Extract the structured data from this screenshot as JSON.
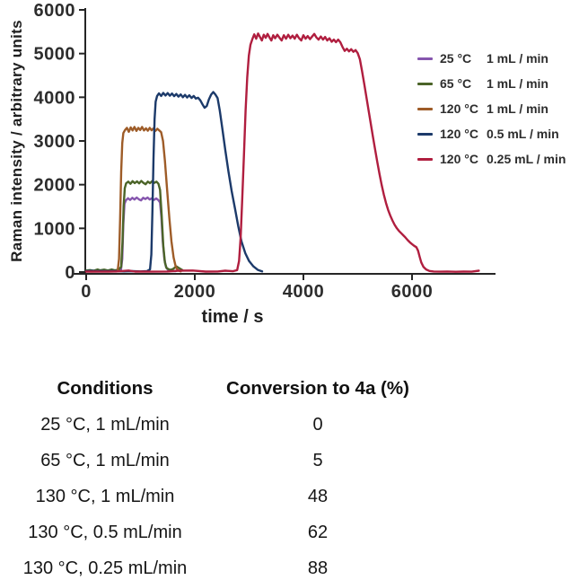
{
  "chart_data": {
    "type": "line",
    "title": "",
    "xlabel": "time / s",
    "ylabel": "Raman intensity / arbitrary units",
    "xlim": [
      0,
      7500
    ],
    "ylim": [
      0,
      6000
    ],
    "x_ticks": [
      0,
      2000,
      4000,
      6000
    ],
    "y_ticks": [
      0,
      1000,
      2000,
      3000,
      4000,
      5000,
      6000
    ],
    "grid": false,
    "legend_position": "right",
    "axis_color": "#262626",
    "series": [
      {
        "name": "25c-1ml",
        "temp": "25 °C",
        "flow": "1 mL / min",
        "color": "#8656ae",
        "points": [
          [
            0,
            25
          ],
          [
            60,
            20
          ],
          [
            130,
            30
          ],
          [
            200,
            22
          ],
          [
            270,
            28
          ],
          [
            340,
            20
          ],
          [
            420,
            26
          ],
          [
            500,
            22
          ],
          [
            580,
            28
          ],
          [
            640,
            40
          ],
          [
            665,
            300
          ],
          [
            685,
            1100
          ],
          [
            705,
            1560
          ],
          [
            730,
            1640
          ],
          [
            770,
            1690
          ],
          [
            810,
            1650
          ],
          [
            850,
            1700
          ],
          [
            890,
            1660
          ],
          [
            930,
            1705
          ],
          [
            970,
            1665
          ],
          [
            1010,
            1640
          ],
          [
            1050,
            1700
          ],
          [
            1090,
            1670
          ],
          [
            1130,
            1705
          ],
          [
            1170,
            1660
          ],
          [
            1210,
            1690
          ],
          [
            1250,
            1650
          ],
          [
            1290,
            1685
          ],
          [
            1330,
            1645
          ],
          [
            1360,
            1590
          ],
          [
            1385,
            1250
          ],
          [
            1410,
            700
          ],
          [
            1440,
            300
          ],
          [
            1470,
            120
          ],
          [
            1510,
            40
          ],
          [
            1580,
            25
          ],
          [
            1650,
            20
          ]
        ]
      },
      {
        "name": "65c-1ml",
        "temp": "65 °C",
        "flow": "1 mL / min",
        "color": "#4b6428",
        "points": [
          [
            0,
            35
          ],
          [
            70,
            45
          ],
          [
            140,
            30
          ],
          [
            210,
            60
          ],
          [
            260,
            40
          ],
          [
            330,
            55
          ],
          [
            400,
            35
          ],
          [
            470,
            60
          ],
          [
            530,
            40
          ],
          [
            600,
            55
          ],
          [
            645,
            120
          ],
          [
            670,
            700
          ],
          [
            690,
            1500
          ],
          [
            710,
            1920
          ],
          [
            735,
            2030
          ],
          [
            775,
            2070
          ],
          [
            815,
            2020
          ],
          [
            855,
            2080
          ],
          [
            895,
            2035
          ],
          [
            935,
            2075
          ],
          [
            975,
            2030
          ],
          [
            1015,
            2085
          ],
          [
            1055,
            2040
          ],
          [
            1095,
            2010
          ],
          [
            1135,
            2070
          ],
          [
            1175,
            2035
          ],
          [
            1215,
            2080
          ],
          [
            1255,
            2040
          ],
          [
            1295,
            2070
          ],
          [
            1330,
            2020
          ],
          [
            1360,
            1880
          ],
          [
            1390,
            1300
          ],
          [
            1420,
            600
          ],
          [
            1450,
            220
          ],
          [
            1480,
            90
          ],
          [
            1540,
            50
          ],
          [
            1600,
            70
          ],
          [
            1660,
            130
          ],
          [
            1710,
            90
          ],
          [
            1770,
            45
          ]
        ]
      },
      {
        "name": "120c-1ml",
        "temp": "120 °C",
        "flow": "1 mL / min",
        "color": "#9e5c28",
        "points": [
          [
            0,
            15
          ],
          [
            100,
            12
          ],
          [
            250,
            15
          ],
          [
            400,
            12
          ],
          [
            520,
            15
          ],
          [
            580,
            30
          ],
          [
            605,
            300
          ],
          [
            625,
            1200
          ],
          [
            645,
            2300
          ],
          [
            665,
            2950
          ],
          [
            685,
            3180
          ],
          [
            715,
            3250
          ],
          [
            750,
            3300
          ],
          [
            785,
            3210
          ],
          [
            820,
            3310
          ],
          [
            855,
            3240
          ],
          [
            890,
            3320
          ],
          [
            925,
            3230
          ],
          [
            960,
            3300
          ],
          [
            995,
            3250
          ],
          [
            1030,
            3320
          ],
          [
            1065,
            3240
          ],
          [
            1100,
            3290
          ],
          [
            1135,
            3235
          ],
          [
            1170,
            3300
          ],
          [
            1205,
            3245
          ],
          [
            1240,
            3290
          ],
          [
            1275,
            3230
          ],
          [
            1310,
            3280
          ],
          [
            1345,
            3240
          ],
          [
            1380,
            3200
          ],
          [
            1415,
            3000
          ],
          [
            1450,
            2550
          ],
          [
            1490,
            1900
          ],
          [
            1530,
            1250
          ],
          [
            1570,
            700
          ],
          [
            1610,
            330
          ],
          [
            1650,
            120
          ],
          [
            1690,
            40
          ],
          [
            1740,
            15
          ]
        ]
      },
      {
        "name": "120c-05ml",
        "temp": "120 °C",
        "flow": "0.5 mL / min",
        "color": "#1c3a6a",
        "points": [
          [
            0,
            20
          ],
          [
            90,
            28
          ],
          [
            180,
            18
          ],
          [
            280,
            25
          ],
          [
            380,
            18
          ],
          [
            480,
            24
          ],
          [
            570,
            18
          ],
          [
            700,
            15
          ],
          [
            850,
            20
          ],
          [
            1000,
            15
          ],
          [
            1120,
            22
          ],
          [
            1175,
            60
          ],
          [
            1200,
            400
          ],
          [
            1220,
            1400
          ],
          [
            1240,
            2600
          ],
          [
            1260,
            3500
          ],
          [
            1280,
            3900
          ],
          [
            1305,
            4030
          ],
          [
            1340,
            4090
          ],
          [
            1380,
            4030
          ],
          [
            1420,
            4100
          ],
          [
            1460,
            4040
          ],
          [
            1500,
            4095
          ],
          [
            1540,
            4035
          ],
          [
            1580,
            4085
          ],
          [
            1620,
            4025
          ],
          [
            1660,
            4075
          ],
          [
            1700,
            4015
          ],
          [
            1740,
            4065
          ],
          [
            1780,
            4000
          ],
          [
            1820,
            4055
          ],
          [
            1860,
            3995
          ],
          [
            1900,
            4045
          ],
          [
            1940,
            3985
          ],
          [
            1980,
            4030
          ],
          [
            2020,
            3970
          ],
          [
            2060,
            3990
          ],
          [
            2100,
            3930
          ],
          [
            2140,
            3840
          ],
          [
            2180,
            3760
          ],
          [
            2220,
            3800
          ],
          [
            2260,
            3950
          ],
          [
            2300,
            4060
          ],
          [
            2340,
            4120
          ],
          [
            2380,
            4060
          ],
          [
            2420,
            3980
          ],
          [
            2460,
            3700
          ],
          [
            2510,
            3250
          ],
          [
            2560,
            2800
          ],
          [
            2620,
            2300
          ],
          [
            2680,
            1850
          ],
          [
            2740,
            1450
          ],
          [
            2800,
            1050
          ],
          [
            2860,
            700
          ],
          [
            2930,
            430
          ],
          [
            3000,
            250
          ],
          [
            3080,
            130
          ],
          [
            3160,
            50
          ],
          [
            3240,
            15
          ]
        ]
      },
      {
        "name": "120c-025ml",
        "temp": "120 °C",
        "flow": "0.25 mL / min",
        "color": "#b01e3f",
        "points": [
          [
            0,
            10
          ],
          [
            300,
            8
          ],
          [
            550,
            12
          ],
          [
            780,
            35
          ],
          [
            900,
            10
          ],
          [
            1200,
            8
          ],
          [
            1500,
            12
          ],
          [
            1700,
            30
          ],
          [
            1960,
            35
          ],
          [
            2200,
            10
          ],
          [
            2420,
            12
          ],
          [
            2560,
            30
          ],
          [
            2700,
            18
          ],
          [
            2780,
            45
          ],
          [
            2815,
            250
          ],
          [
            2845,
            800
          ],
          [
            2875,
            1700
          ],
          [
            2905,
            2700
          ],
          [
            2935,
            3700
          ],
          [
            2965,
            4450
          ],
          [
            2995,
            4950
          ],
          [
            3025,
            5200
          ],
          [
            3060,
            5330
          ],
          [
            3095,
            5440
          ],
          [
            3130,
            5340
          ],
          [
            3165,
            5460
          ],
          [
            3200,
            5380
          ],
          [
            3235,
            5300
          ],
          [
            3270,
            5430
          ],
          [
            3305,
            5360
          ],
          [
            3340,
            5450
          ],
          [
            3375,
            5370
          ],
          [
            3410,
            5300
          ],
          [
            3445,
            5420
          ],
          [
            3480,
            5350
          ],
          [
            3520,
            5430
          ],
          [
            3560,
            5360
          ],
          [
            3600,
            5300
          ],
          [
            3640,
            5420
          ],
          [
            3680,
            5340
          ],
          [
            3720,
            5430
          ],
          [
            3760,
            5350
          ],
          [
            3800,
            5410
          ],
          [
            3840,
            5340
          ],
          [
            3880,
            5430
          ],
          [
            3920,
            5350
          ],
          [
            3960,
            5300
          ],
          [
            4000,
            5420
          ],
          [
            4040,
            5340
          ],
          [
            4080,
            5400
          ],
          [
            4120,
            5330
          ],
          [
            4160,
            5390
          ],
          [
            4200,
            5450
          ],
          [
            4240,
            5370
          ],
          [
            4280,
            5320
          ],
          [
            4320,
            5390
          ],
          [
            4360,
            5320
          ],
          [
            4400,
            5380
          ],
          [
            4440,
            5300
          ],
          [
            4480,
            5350
          ],
          [
            4520,
            5270
          ],
          [
            4560,
            5320
          ],
          [
            4600,
            5260
          ],
          [
            4640,
            5320
          ],
          [
            4680,
            5260
          ],
          [
            4720,
            5150
          ],
          [
            4760,
            5060
          ],
          [
            4800,
            5110
          ],
          [
            4840,
            5050
          ],
          [
            4880,
            5100
          ],
          [
            4920,
            5040
          ],
          [
            4960,
            5080
          ],
          [
            5000,
            5010
          ],
          [
            5040,
            4870
          ],
          [
            5080,
            4600
          ],
          [
            5120,
            4300
          ],
          [
            5160,
            4000
          ],
          [
            5200,
            3700
          ],
          [
            5240,
            3400
          ],
          [
            5280,
            3100
          ],
          [
            5320,
            2800
          ],
          [
            5360,
            2520
          ],
          [
            5400,
            2250
          ],
          [
            5440,
            2000
          ],
          [
            5480,
            1780
          ],
          [
            5520,
            1580
          ],
          [
            5560,
            1420
          ],
          [
            5600,
            1290
          ],
          [
            5640,
            1180
          ],
          [
            5680,
            1080
          ],
          [
            5720,
            1000
          ],
          [
            5760,
            940
          ],
          [
            5800,
            890
          ],
          [
            5840,
            840
          ],
          [
            5880,
            790
          ],
          [
            5920,
            730
          ],
          [
            5960,
            680
          ],
          [
            6000,
            640
          ],
          [
            6040,
            600
          ],
          [
            6080,
            570
          ],
          [
            6110,
            490
          ],
          [
            6140,
            350
          ],
          [
            6170,
            220
          ],
          [
            6210,
            120
          ],
          [
            6260,
            60
          ],
          [
            6320,
            25
          ],
          [
            6400,
            12
          ],
          [
            6520,
            8
          ],
          [
            6650,
            12
          ],
          [
            6800,
            6
          ],
          [
            6950,
            10
          ],
          [
            7100,
            8
          ],
          [
            7230,
            30
          ]
        ]
      }
    ]
  },
  "table": {
    "headers": [
      "Conditions",
      "Conversion to 4a (%)"
    ],
    "rows": [
      {
        "conditions": "25 °C, 1 mL/min",
        "conversion": "0"
      },
      {
        "conditions": "65 °C, 1 mL/min",
        "conversion": "5"
      },
      {
        "conditions": "130 °C, 1 mL/min",
        "conversion": "48"
      },
      {
        "conditions": "130 °C, 0.5 mL/min",
        "conversion": "62"
      },
      {
        "conditions": "130 °C, 0.25 mL/min",
        "conversion": "88"
      }
    ]
  }
}
